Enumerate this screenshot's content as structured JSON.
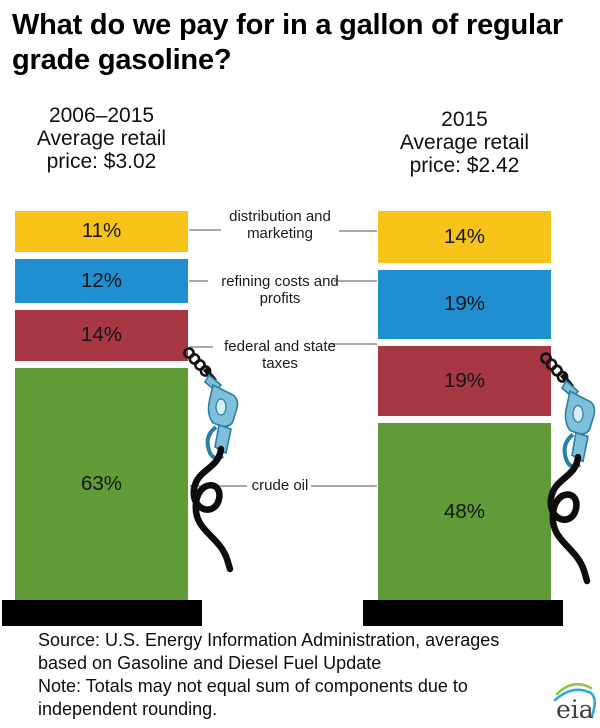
{
  "title": "What do we pay for in a gallon of regular grade gasoline?",
  "headers": {
    "left": {
      "line1": "2006–2015",
      "line2": "Average retail",
      "line3": "price: $3.02"
    },
    "right": {
      "line1": "2015",
      "line2": "Average retail",
      "line3": "price: $2.42"
    }
  },
  "chart_data": {
    "type": "bar",
    "variant": "stacked-percentage",
    "unit": "%",
    "title": "What do we pay for in a gallon of regular grade gasoline?",
    "categories": [
      "distribution and marketing",
      "refining costs and profits",
      "federal and state taxes",
      "crude oil"
    ],
    "series": [
      {
        "name": "2006–2015",
        "average_retail_price": "$3.02",
        "values": [
          11,
          12,
          14,
          63
        ]
      },
      {
        "name": "2015",
        "average_retail_price": "$2.42",
        "values": [
          14,
          19,
          19,
          48
        ]
      }
    ],
    "colors": {
      "distribution and marketing": "#F7C318",
      "refining costs and profits": "#1F8FD1",
      "federal and state taxes": "#A73743",
      "crude oil": "#609B38"
    },
    "pedestal_color": "#000000",
    "legend_position": "center-labels",
    "grid": false
  },
  "mid_labels": [
    [
      "distribution and",
      "marketing"
    ],
    [
      "refining costs and",
      "profits"
    ],
    [
      "federal and state",
      "taxes"
    ],
    [
      "crude oil"
    ]
  ],
  "footer": {
    "lines": [
      "Source: U.S. Energy Information Administration, averages",
      "based on Gasoline and Diesel Fuel Update",
      "Note: Totals may not equal sum of components due to",
      "independent rounding."
    ]
  },
  "logo": {
    "text": "eia"
  }
}
